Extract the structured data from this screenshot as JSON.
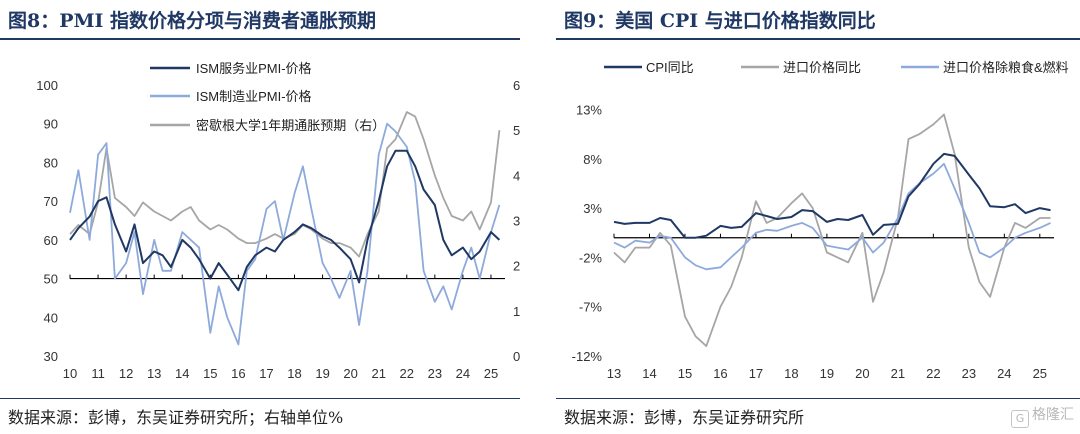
{
  "left": {
    "title": "图8：PMI 指数价格分项与消费者通胀预期",
    "source": "数据来源：彭博，东吴证券研究所；右轴单位%"
  },
  "right": {
    "title": "图9：美国 CPI 与进口价格指数同比",
    "source": "数据来源：彭博，东吴证券研究所"
  },
  "watermark": {
    "text": "格隆汇",
    "glyph": "G"
  },
  "chart_data": [
    {
      "type": "line",
      "x_ticks": [
        "10",
        "11",
        "12",
        "13",
        "14",
        "15",
        "16",
        "17",
        "18",
        "19",
        "20",
        "21",
        "22",
        "23",
        "24",
        "25"
      ],
      "x_range": [
        2010,
        2025.5
      ],
      "ylim": [
        30,
        100
      ],
      "y_ticks": [
        30,
        40,
        50,
        60,
        70,
        80,
        90,
        100
      ],
      "y2lim": [
        0,
        6
      ],
      "y2_ticks": [
        0,
        1,
        2,
        3,
        4,
        5,
        6
      ],
      "baseline": 50,
      "legend_position": "top-center",
      "series": [
        {
          "name": "ISM服务业PMI-价格",
          "axis": "left",
          "color": "#1f3864",
          "x": [
            2010,
            2010.3,
            2010.7,
            2011.0,
            2011.3,
            2011.6,
            2012.0,
            2012.3,
            2012.6,
            2013.0,
            2013.3,
            2013.6,
            2014.0,
            2014.3,
            2014.6,
            2015.0,
            2015.3,
            2015.6,
            2016.0,
            2016.3,
            2016.6,
            2017.0,
            2017.3,
            2017.6,
            2018.0,
            2018.3,
            2018.6,
            2019.0,
            2019.3,
            2019.6,
            2020.0,
            2020.3,
            2020.6,
            2021.0,
            2021.3,
            2021.6,
            2022.0,
            2022.3,
            2022.6,
            2023.0,
            2023.3,
            2023.6,
            2024.0,
            2024.3,
            2024.6,
            2025.0,
            2025.3
          ],
          "y": [
            60,
            63,
            66,
            70,
            71,
            64,
            57,
            64,
            54,
            57,
            56,
            53,
            60,
            58,
            55,
            50,
            54,
            51,
            47,
            53,
            56,
            58,
            57,
            60,
            62,
            64,
            63,
            61,
            60,
            58,
            55,
            49,
            60,
            70,
            79,
            83,
            83,
            79,
            73,
            69,
            60,
            56,
            58,
            55,
            57,
            62,
            60
          ]
        },
        {
          "name": "ISM制造业PMI-价格",
          "axis": "left",
          "color": "#8eaadb",
          "x": [
            2010,
            2010.3,
            2010.7,
            2011.0,
            2011.3,
            2011.6,
            2012.0,
            2012.3,
            2012.6,
            2013.0,
            2013.3,
            2013.6,
            2014.0,
            2014.3,
            2014.6,
            2015.0,
            2015.3,
            2015.6,
            2016.0,
            2016.3,
            2016.6,
            2017.0,
            2017.3,
            2017.6,
            2018.0,
            2018.3,
            2018.6,
            2019.0,
            2019.3,
            2019.6,
            2020.0,
            2020.3,
            2020.6,
            2021.0,
            2021.3,
            2021.6,
            2022.0,
            2022.3,
            2022.6,
            2023.0,
            2023.3,
            2023.6,
            2024.0,
            2024.3,
            2024.6,
            2025.0,
            2025.3
          ],
          "y": [
            67,
            78,
            60,
            82,
            85,
            50,
            54,
            62,
            46,
            60,
            52,
            52,
            62,
            60,
            58,
            36,
            48,
            40,
            33,
            52,
            55,
            68,
            70,
            60,
            72,
            79,
            68,
            54,
            50,
            45,
            52,
            38,
            52,
            82,
            90,
            88,
            84,
            75,
            52,
            44,
            48,
            42,
            52,
            58,
            50,
            62,
            69
          ]
        },
        {
          "name": "密歇根大学1年期通胀预期（右）",
          "axis": "right",
          "color": "#a6a6a6",
          "x": [
            2010,
            2010.3,
            2010.7,
            2011.0,
            2011.3,
            2011.6,
            2012.0,
            2012.3,
            2012.6,
            2013.0,
            2013.3,
            2013.6,
            2014.0,
            2014.3,
            2014.6,
            2015.0,
            2015.3,
            2015.6,
            2016.0,
            2016.3,
            2016.6,
            2017.0,
            2017.3,
            2017.6,
            2018.0,
            2018.3,
            2018.6,
            2019.0,
            2019.3,
            2019.6,
            2020.0,
            2020.3,
            2020.6,
            2021.0,
            2021.3,
            2021.6,
            2022.0,
            2022.3,
            2022.6,
            2023.0,
            2023.3,
            2023.6,
            2024.0,
            2024.3,
            2024.6,
            2025.0,
            2025.3
          ],
          "y": [
            2.7,
            2.9,
            2.7,
            3.4,
            4.6,
            3.5,
            3.3,
            3.1,
            3.4,
            3.2,
            3.1,
            3.0,
            3.2,
            3.3,
            3.0,
            2.8,
            2.9,
            2.8,
            2.6,
            2.5,
            2.5,
            2.6,
            2.7,
            2.6,
            2.7,
            2.9,
            2.8,
            2.6,
            2.5,
            2.5,
            2.4,
            2.2,
            2.7,
            3.2,
            4.6,
            4.8,
            5.4,
            5.3,
            4.8,
            4.0,
            3.5,
            3.1,
            3.0,
            3.2,
            2.8,
            3.4,
            5.0
          ]
        }
      ]
    },
    {
      "type": "line",
      "x_ticks": [
        "13",
        "14",
        "15",
        "16",
        "17",
        "18",
        "19",
        "20",
        "21",
        "22",
        "23",
        "24",
        "25"
      ],
      "x_range": [
        2013,
        2025.4
      ],
      "ylim": [
        -12,
        16
      ],
      "y_ticks": [
        "13%",
        "8%",
        "3%",
        "-2%",
        "-7%",
        "-12%"
      ],
      "y_tick_values": [
        13,
        8,
        3,
        -2,
        -7,
        -12
      ],
      "baseline": 0,
      "legend_position": "top",
      "series": [
        {
          "name": "CPI同比",
          "color": "#1f3864",
          "x": [
            2013,
            2013.3,
            2013.6,
            2014.0,
            2014.3,
            2014.6,
            2015.0,
            2015.3,
            2015.6,
            2016.0,
            2016.3,
            2016.6,
            2017.0,
            2017.3,
            2017.6,
            2018.0,
            2018.3,
            2018.6,
            2019.0,
            2019.3,
            2019.6,
            2020.0,
            2020.3,
            2020.6,
            2021.0,
            2021.3,
            2021.6,
            2022.0,
            2022.3,
            2022.6,
            2023.0,
            2023.3,
            2023.6,
            2024.0,
            2024.3,
            2024.6,
            2025.0,
            2025.3
          ],
          "y": [
            1.6,
            1.4,
            1.5,
            1.5,
            2.0,
            1.8,
            0.0,
            0.0,
            0.2,
            1.2,
            1.0,
            1.1,
            2.5,
            2.2,
            1.9,
            2.1,
            2.8,
            2.7,
            1.6,
            1.9,
            1.8,
            2.3,
            0.3,
            1.3,
            1.4,
            4.2,
            5.4,
            7.5,
            8.5,
            8.3,
            6.4,
            5.0,
            3.2,
            3.1,
            3.4,
            2.5,
            3.0,
            2.8
          ]
        },
        {
          "name": "进口价格同比",
          "color": "#a6a6a6",
          "x": [
            2013,
            2013.3,
            2013.6,
            2014.0,
            2014.3,
            2014.6,
            2015.0,
            2015.3,
            2015.6,
            2016.0,
            2016.3,
            2016.6,
            2017.0,
            2017.3,
            2017.6,
            2018.0,
            2018.3,
            2018.6,
            2019.0,
            2019.3,
            2019.6,
            2020.0,
            2020.3,
            2020.6,
            2021.0,
            2021.3,
            2021.6,
            2022.0,
            2022.3,
            2022.6,
            2023.0,
            2023.3,
            2023.6,
            2024.0,
            2024.3,
            2024.6,
            2025.0,
            2025.3
          ],
          "y": [
            -1.5,
            -2.5,
            -1.0,
            -1.0,
            0.5,
            -0.8,
            -8.0,
            -10.0,
            -11.0,
            -7.0,
            -5.0,
            -2.0,
            3.7,
            1.5,
            2.0,
            3.5,
            4.5,
            3.0,
            -1.5,
            -2.0,
            -2.5,
            0.5,
            -6.5,
            -3.5,
            2.0,
            10.0,
            10.5,
            11.5,
            12.5,
            8.5,
            -1.0,
            -4.5,
            -6.0,
            -1.0,
            1.5,
            1.0,
            2.0,
            2.0
          ]
        },
        {
          "name": "进口价格除粮食&燃料",
          "color": "#8eaadb",
          "x": [
            2013,
            2013.3,
            2013.6,
            2014.0,
            2014.3,
            2014.6,
            2015.0,
            2015.3,
            2015.6,
            2016.0,
            2016.3,
            2016.6,
            2017.0,
            2017.3,
            2017.6,
            2018.0,
            2018.3,
            2018.6,
            2019.0,
            2019.3,
            2019.6,
            2020.0,
            2020.3,
            2020.6,
            2021.0,
            2021.3,
            2021.6,
            2022.0,
            2022.3,
            2022.6,
            2023.0,
            2023.3,
            2023.6,
            2024.0,
            2024.3,
            2024.6,
            2025.0,
            2025.3
          ],
          "y": [
            -0.5,
            -1.0,
            -0.3,
            -0.5,
            0.2,
            0.0,
            -2.0,
            -2.8,
            -3.2,
            -3.0,
            -2.0,
            -1.0,
            0.5,
            0.8,
            0.7,
            1.2,
            1.5,
            1.0,
            -0.8,
            -1.0,
            -1.2,
            0.0,
            -1.5,
            -0.5,
            2.0,
            4.5,
            5.5,
            6.5,
            7.5,
            5.0,
            1.5,
            -1.5,
            -2.0,
            -1.0,
            0.0,
            0.5,
            1.0,
            1.5
          ]
        }
      ]
    }
  ]
}
